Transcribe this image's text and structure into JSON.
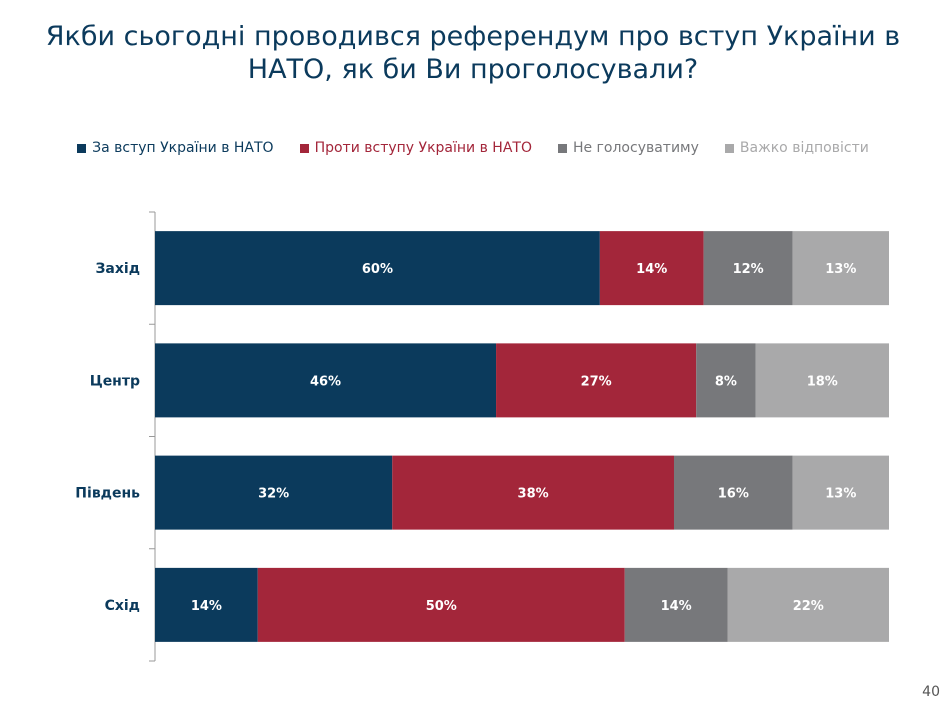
{
  "title": "Якби сьогодні проводився референдум про вступ України в НАТО, як би Ви проголосували?",
  "page_number": "40",
  "chart_data": {
    "type": "bar",
    "orientation": "horizontal",
    "stacked": true,
    "normalized": true,
    "categories": [
      "Захід",
      "Центр",
      "Південь",
      "Схід"
    ],
    "series": [
      {
        "name": "За вступ України в НАТО",
        "color": "#0b3a5c",
        "values": [
          60,
          46,
          32,
          14
        ],
        "labels": [
          "60%",
          "46%",
          "32%",
          "14%"
        ]
      },
      {
        "name": "Проти вступу України в НАТО",
        "color": "#a3263a",
        "values": [
          14,
          27,
          38,
          50
        ],
        "labels": [
          "14%",
          "27%",
          "38%",
          "50%"
        ]
      },
      {
        "name": "Не голосуватиму",
        "color": "#77787b",
        "values": [
          12,
          8,
          16,
          14
        ],
        "labels": [
          "12%",
          "8%",
          "16%",
          "14%"
        ]
      },
      {
        "name": "Важко відповісти",
        "color": "#a9a9aa",
        "values": [
          13,
          18,
          13,
          22
        ],
        "labels": [
          "13%",
          "18%",
          "13%",
          "22%"
        ]
      }
    ],
    "legend_position": "top",
    "grid": false
  }
}
